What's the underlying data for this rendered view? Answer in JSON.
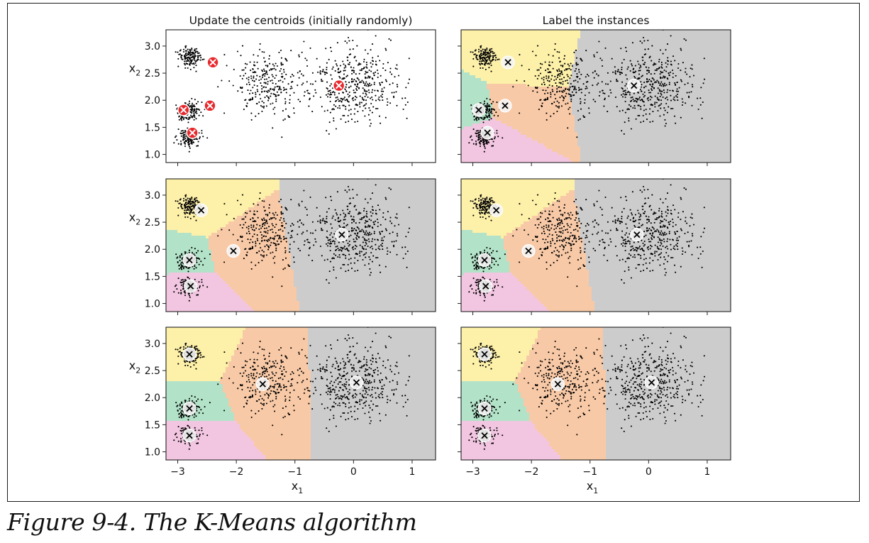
{
  "caption": "Figure 9-4. The K-Means algorithm",
  "colors": {
    "region_1": "#fdf0a8",
    "region_2": "#b2e2c8",
    "region_3": "#f8c9a6",
    "region_4": "#f2c6e1",
    "region_5": "#cccccc",
    "initial_centroid": "#e8282c",
    "centroid_marker": "#f4f4f4",
    "points": "#000000"
  },
  "chart_data": [
    {
      "type": "scatter",
      "title": "Update the centroids (initially randomly)",
      "xlabel": "",
      "ylabel": "x2",
      "xlim": [
        -3.2,
        1.4
      ],
      "ylim": [
        0.85,
        3.3
      ],
      "yticks": [
        "1.0",
        "1.5",
        "2.0",
        "2.5",
        "3.0"
      ],
      "xticks": [],
      "shaded": false,
      "centroid_style": "initial",
      "centroids": [
        [
          -2.4,
          2.7
        ],
        [
          -2.9,
          1.82
        ],
        [
          -2.45,
          1.9
        ],
        [
          -2.75,
          1.4
        ],
        [
          -0.25,
          2.27
        ]
      ]
    },
    {
      "type": "scatter",
      "title": "Label the instances",
      "xlabel": "",
      "ylabel": "",
      "xlim": [
        -3.2,
        1.4
      ],
      "ylim": [
        0.85,
        3.3
      ],
      "yticks": [],
      "xticks": [],
      "shaded": true,
      "centroid_style": "cross",
      "centroids": [
        [
          -2.4,
          2.7
        ],
        [
          -2.9,
          1.82
        ],
        [
          -2.45,
          1.9
        ],
        [
          -2.75,
          1.4
        ],
        [
          -0.25,
          2.27
        ]
      ]
    },
    {
      "type": "scatter",
      "title": "",
      "xlabel": "",
      "ylabel": "x2",
      "xlim": [
        -3.2,
        1.4
      ],
      "ylim": [
        0.85,
        3.3
      ],
      "yticks": [
        "1.0",
        "1.5",
        "2.0",
        "2.5",
        "3.0"
      ],
      "xticks": [],
      "shaded": true,
      "centroid_style": "cross",
      "centroids": [
        [
          -2.6,
          2.72
        ],
        [
          -2.8,
          1.8
        ],
        [
          -2.05,
          1.97
        ],
        [
          -2.78,
          1.32
        ],
        [
          -0.2,
          2.27
        ]
      ]
    },
    {
      "type": "scatter",
      "title": "",
      "xlabel": "",
      "ylabel": "",
      "xlim": [
        -3.2,
        1.4
      ],
      "ylim": [
        0.85,
        3.3
      ],
      "yticks": [],
      "xticks": [],
      "shaded": true,
      "centroid_style": "cross",
      "centroids": [
        [
          -2.6,
          2.72
        ],
        [
          -2.8,
          1.8
        ],
        [
          -2.05,
          1.97
        ],
        [
          -2.78,
          1.32
        ],
        [
          -0.2,
          2.27
        ]
      ]
    },
    {
      "type": "scatter",
      "title": "",
      "xlabel": "x1",
      "ylabel": "x2",
      "xlim": [
        -3.2,
        1.4
      ],
      "ylim": [
        0.85,
        3.3
      ],
      "yticks": [
        "1.0",
        "1.5",
        "2.0",
        "2.5",
        "3.0"
      ],
      "xticks": [
        "−3",
        "−2",
        "−1",
        "0",
        "1"
      ],
      "shaded": true,
      "centroid_style": "cross",
      "centroids": [
        [
          -2.8,
          2.8
        ],
        [
          -2.8,
          1.8
        ],
        [
          -1.55,
          2.25
        ],
        [
          -2.8,
          1.3
        ],
        [
          0.05,
          2.28
        ]
      ]
    },
    {
      "type": "scatter",
      "title": "",
      "xlabel": "x1",
      "ylabel": "",
      "xlim": [
        -3.2,
        1.4
      ],
      "ylim": [
        0.85,
        3.3
      ],
      "yticks": [],
      "xticks": [
        "−3",
        "−2",
        "−1",
        "0",
        "1"
      ],
      "shaded": true,
      "centroid_style": "cross",
      "centroids": [
        [
          -2.8,
          2.8
        ],
        [
          -2.8,
          1.8
        ],
        [
          -1.55,
          2.25
        ],
        [
          -2.8,
          1.3
        ],
        [
          0.05,
          2.28
        ]
      ]
    }
  ],
  "clusters": [
    {
      "cx": -2.8,
      "cy": 2.8,
      "sx": 0.1,
      "sy": 0.1,
      "n": 140
    },
    {
      "cx": -2.8,
      "cy": 1.8,
      "sx": 0.1,
      "sy": 0.1,
      "n": 140
    },
    {
      "cx": -2.8,
      "cy": 1.3,
      "sx": 0.1,
      "sy": 0.1,
      "n": 140
    },
    {
      "cx": -1.5,
      "cy": 2.3,
      "sx": 0.3,
      "sy": 0.3,
      "n": 280
    },
    {
      "cx": 0.0,
      "cy": 2.3,
      "sx": 0.4,
      "sy": 0.35,
      "n": 450
    }
  ]
}
